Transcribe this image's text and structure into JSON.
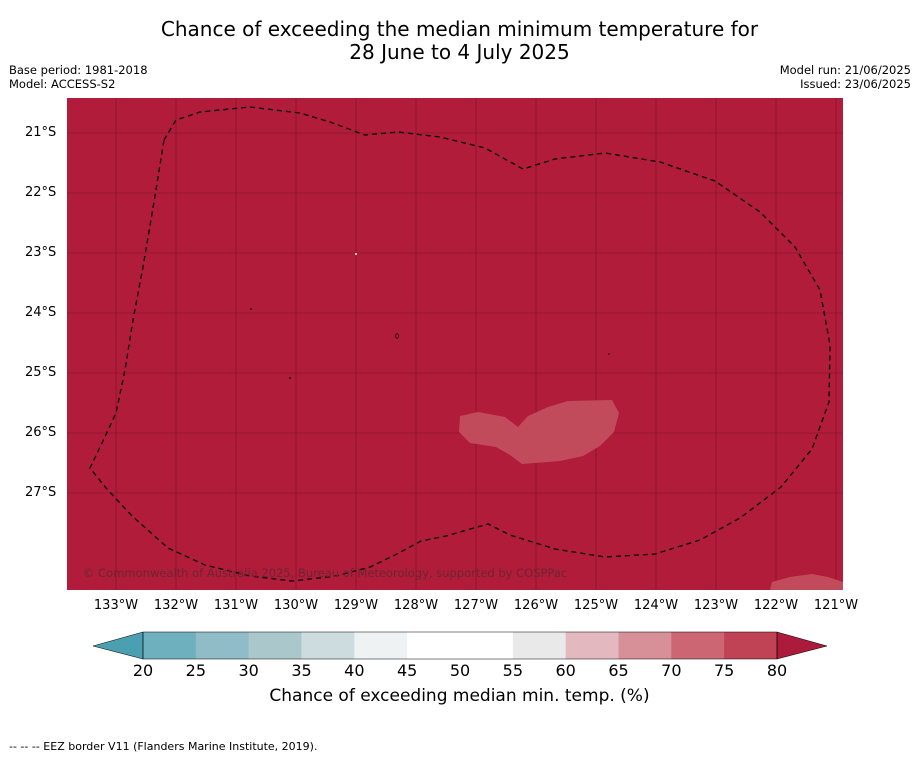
{
  "title_line1": "Chance of exceeding the median minimum temperature for",
  "title_line2": "28 June to 4 July 2025",
  "base_period": "Base period: 1981-2018",
  "model": "Model: ACCESS-S2",
  "model_run": "Model run: 21/06/2025",
  "issued": "Issued: 23/06/2025",
  "copyright": "© Commonwealth of Australia 2025, Bureau of Meteorology, supported by COSPPac",
  "footnote": "--  --  -- EEZ border V11 (Flanders Marine Institute, 2019).",
  "map": {
    "lat_labels": [
      "21°S",
      "22°S",
      "23°S",
      "24°S",
      "25°S",
      "26°S",
      "27°S"
    ],
    "lon_labels": [
      "133°W",
      "132°W",
      "131°W",
      "130°W",
      "129°W",
      "128°W",
      "127°W",
      "126°W",
      "125°W",
      "124°W",
      "123°W",
      "122°W",
      "121°W"
    ],
    "dominant_category": "above 80%",
    "dominant_color": "#b01c3a",
    "patch_color": "#c24b5b"
  },
  "colorbar": {
    "label": "Chance of exceeding median min. temp. (%)",
    "ticks": [
      "20",
      "25",
      "30",
      "35",
      "40",
      "45",
      "50",
      "55",
      "60",
      "65",
      "70",
      "75",
      "80"
    ],
    "colors": [
      "#4aa0b1",
      "#6fb0bf",
      "#8fbcc6",
      "#aac8cc",
      "#cddcdf",
      "#eef2f3",
      "#ffffff",
      "#ffffff",
      "#e9e9e9",
      "#e3b8be",
      "#d79097",
      "#cb6672",
      "#bf4354",
      "#ad1b3c"
    ]
  }
}
